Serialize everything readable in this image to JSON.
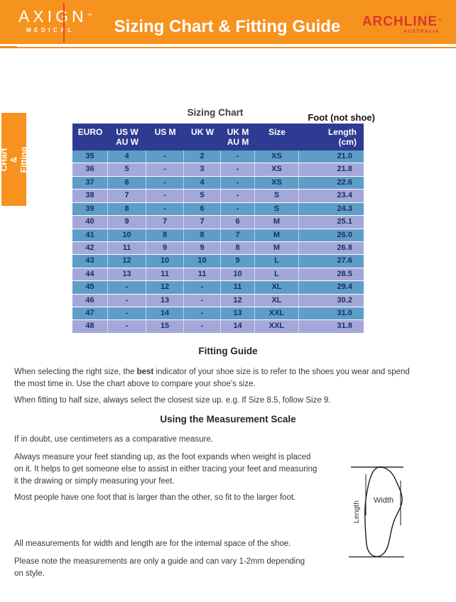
{
  "header": {
    "brand_name": "AXIGN",
    "brand_tm": "™",
    "brand_sub": "MEDICAL",
    "title": "Sizing Chart & Fitting Guide",
    "partner_name": "ARCHLINE",
    "partner_tm": "™",
    "partner_sub": "AUSTRALIA"
  },
  "side_tab": {
    "text": "Sizing CHart\n& Fitting Guide"
  },
  "sizing_chart": {
    "title": "Sizing Chart",
    "foot_label": "Foot (not shoe)",
    "columns": [
      {
        "line1": "EURO",
        "line2": ""
      },
      {
        "line1": "US W",
        "line2": "AU W"
      },
      {
        "line1": "US M",
        "line2": ""
      },
      {
        "line1": "UK W",
        "line2": ""
      },
      {
        "line1": "UK M",
        "line2": "AU M"
      },
      {
        "line1": "Size",
        "line2": ""
      },
      {
        "line1": "Length",
        "line2": "(cm)"
      }
    ],
    "rows": [
      [
        "35",
        "4",
        "-",
        "2",
        "-",
        "XS",
        "21.0"
      ],
      [
        "36",
        "5",
        "-",
        "3",
        "-",
        "XS",
        "21.8"
      ],
      [
        "37",
        "6",
        "-",
        "4",
        "-",
        "XS",
        "22.6"
      ],
      [
        "38",
        "7",
        "-",
        "5",
        "-",
        "S",
        "23.4"
      ],
      [
        "39",
        "8",
        "-",
        "6",
        "-",
        "S",
        "24.3"
      ],
      [
        "40",
        "9",
        "7",
        "7",
        "6",
        "M",
        "25.1"
      ],
      [
        "41",
        "10",
        "8",
        "8",
        "7",
        "M",
        "26.0"
      ],
      [
        "42",
        "11",
        "9",
        "9",
        "8",
        "M",
        "26.8"
      ],
      [
        "43",
        "12",
        "10",
        "10",
        "9",
        "L",
        "27.6"
      ],
      [
        "44",
        "13",
        "11",
        "11",
        "10",
        "L",
        "28.5"
      ],
      [
        "45",
        "-",
        "12",
        "-",
        "11",
        "XL",
        "29.4"
      ],
      [
        "46",
        "-",
        "13",
        "-",
        "12",
        "XL",
        "30.2"
      ],
      [
        "47",
        "-",
        "14",
        "-",
        "13",
        "XXL",
        "31.0"
      ],
      [
        "48",
        "-",
        "15",
        "-",
        "14",
        "XXL",
        "31.8"
      ]
    ]
  },
  "fitting_guide": {
    "heading": "Fitting Guide",
    "p1_pre": "When selecting the right size, the ",
    "p1_bold": "best",
    "p1_post": " indicator of your shoe size is to refer to the shoes you wear and spend\nthe most time in. Use the chart above to compare your shoe's size.",
    "p2": "When fitting to half size, always select the closest size up. e.g. If Size 8.5, follow Size 9."
  },
  "measurement_scale": {
    "heading": "Using the Measurement Scale",
    "p1": "If in doubt, use centimeters as a comparative measure.",
    "p2": "Always measure your feet standing up, as the foot expands when weight is placed\non it. It helps to get someone else to assist in either tracing your feet and measuring\nit the drawing or simply measuring your feet.",
    "p3": "Most people have one foot that is larger than the other, so fit to the larger foot.",
    "p4": "All measurements for width and length are for the internal space of the shoe.",
    "p5": "Please note the measurements are only a guide and can vary 1-2mm depending\non style."
  },
  "diagram": {
    "width_label": "Width",
    "length_label": "Length"
  },
  "colors": {
    "orange": "#F6921E",
    "header_navy": "#2E3B92",
    "row_blue": "#5E9DC8",
    "row_periwinkle": "#A4A8D9",
    "row_text_navy": "#1A2F63",
    "brand_red": "#D9372B"
  }
}
